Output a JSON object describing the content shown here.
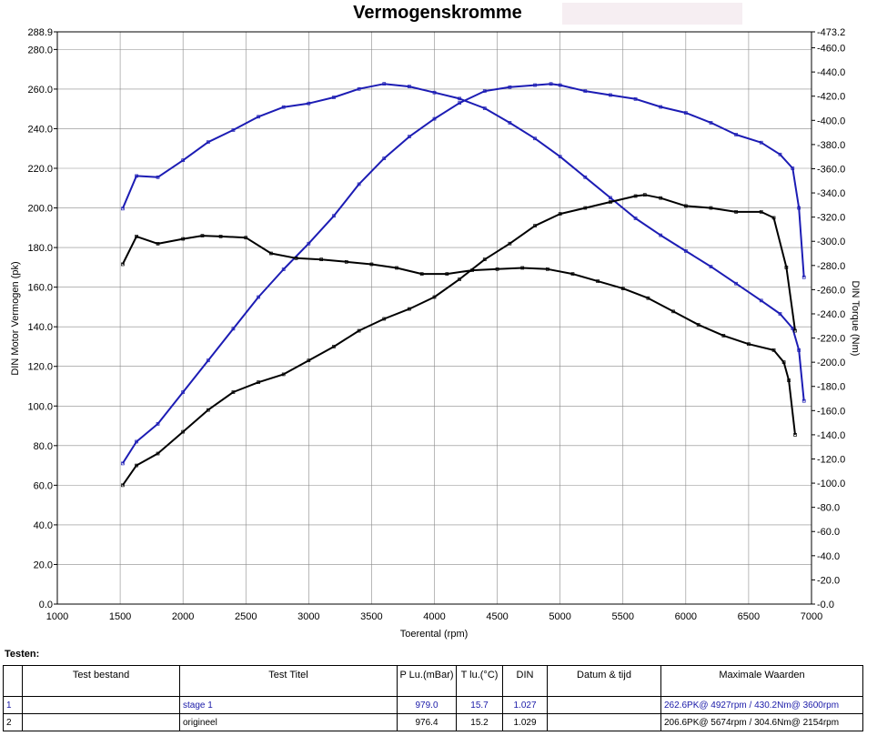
{
  "chart_data": {
    "type": "line",
    "title": "Vermogenskromme",
    "xlabel": "Toerental (rpm)",
    "ylabel_left": "DIN Motor Vermogen (pk)",
    "ylabel_right": "DIN Torque (Nm)",
    "xlim": [
      1000,
      7000
    ],
    "ylim_left": [
      0,
      288.9
    ],
    "ylim_right": [
      0,
      473.2
    ],
    "x_ticks": [
      1000,
      1500,
      2000,
      2500,
      3000,
      3500,
      4000,
      4500,
      5000,
      5500,
      6000,
      6500,
      7000
    ],
    "y_left_ticks": [
      "0.0",
      "20.0",
      "40.0",
      "60.0",
      "80.0",
      "100.0",
      "120.0",
      "140.0",
      "160.0",
      "180.0",
      "200.0",
      "220.0",
      "240.0",
      "260.0",
      "280.0",
      "288.9"
    ],
    "y_right_ticks": [
      "0.0",
      "20.0",
      "40.0",
      "60.0",
      "80.0",
      "100.0",
      "120.0",
      "140.0",
      "160.0",
      "180.0",
      "200.0",
      "220.0",
      "240.0",
      "260.0",
      "280.0",
      "300.0",
      "320.0",
      "340.0",
      "360.0",
      "380.0",
      "400.0",
      "420.0",
      "440.0",
      "460.0",
      "473.2"
    ],
    "grid": true,
    "series": [
      {
        "name": "stage 1",
        "quantity": "power_pk",
        "axis": "left",
        "color": "#1c1cb4",
        "points": [
          [
            1520,
            71
          ],
          [
            1630,
            82
          ],
          [
            1800,
            91
          ],
          [
            2000,
            107
          ],
          [
            2200,
            123
          ],
          [
            2400,
            139
          ],
          [
            2600,
            155
          ],
          [
            2800,
            169
          ],
          [
            3000,
            182
          ],
          [
            3200,
            196
          ],
          [
            3400,
            212
          ],
          [
            3600,
            225
          ],
          [
            3800,
            236
          ],
          [
            4000,
            245
          ],
          [
            4200,
            253
          ],
          [
            4400,
            259
          ],
          [
            4600,
            261
          ],
          [
            4800,
            262
          ],
          [
            4927,
            262.6
          ],
          [
            5000,
            262
          ],
          [
            5200,
            259
          ],
          [
            5400,
            257
          ],
          [
            5600,
            255
          ],
          [
            5800,
            251
          ],
          [
            6000,
            248
          ],
          [
            6200,
            243
          ],
          [
            6400,
            237
          ],
          [
            6600,
            233
          ],
          [
            6750,
            227
          ],
          [
            6850,
            220
          ],
          [
            6900,
            200
          ],
          [
            6940,
            165
          ]
        ]
      },
      {
        "name": "stage 1",
        "quantity": "torque_nm",
        "axis": "right",
        "color": "#1c1cb4",
        "points": [
          [
            1520,
            327
          ],
          [
            1630,
            354
          ],
          [
            1800,
            353
          ],
          [
            2000,
            367
          ],
          [
            2200,
            382
          ],
          [
            2400,
            392
          ],
          [
            2600,
            403
          ],
          [
            2800,
            411
          ],
          [
            3000,
            414
          ],
          [
            3200,
            419
          ],
          [
            3400,
            426
          ],
          [
            3600,
            430.2
          ],
          [
            3800,
            428
          ],
          [
            4000,
            423
          ],
          [
            4200,
            418
          ],
          [
            4400,
            410
          ],
          [
            4600,
            398
          ],
          [
            4800,
            385
          ],
          [
            5000,
            370
          ],
          [
            5200,
            353
          ],
          [
            5400,
            336
          ],
          [
            5600,
            319
          ],
          [
            5800,
            305
          ],
          [
            6000,
            292
          ],
          [
            6200,
            279
          ],
          [
            6400,
            265
          ],
          [
            6600,
            251
          ],
          [
            6750,
            240
          ],
          [
            6850,
            228
          ],
          [
            6900,
            210
          ],
          [
            6940,
            168
          ]
        ]
      },
      {
        "name": "origineel",
        "quantity": "power_pk",
        "axis": "left",
        "color": "#000000",
        "points": [
          [
            1520,
            60
          ],
          [
            1630,
            70
          ],
          [
            1800,
            76
          ],
          [
            2000,
            87
          ],
          [
            2200,
            98
          ],
          [
            2400,
            107
          ],
          [
            2600,
            112
          ],
          [
            2800,
            116
          ],
          [
            3000,
            123
          ],
          [
            3200,
            130
          ],
          [
            3400,
            138
          ],
          [
            3600,
            144
          ],
          [
            3800,
            149
          ],
          [
            4000,
            155
          ],
          [
            4200,
            164
          ],
          [
            4400,
            174
          ],
          [
            4600,
            182
          ],
          [
            4800,
            191
          ],
          [
            5000,
            197
          ],
          [
            5200,
            200
          ],
          [
            5400,
            203
          ],
          [
            5600,
            206
          ],
          [
            5674,
            206.6
          ],
          [
            5800,
            205
          ],
          [
            6000,
            201
          ],
          [
            6200,
            200
          ],
          [
            6400,
            198
          ],
          [
            6600,
            198
          ],
          [
            6700,
            195
          ],
          [
            6800,
            170
          ],
          [
            6870,
            138
          ]
        ]
      },
      {
        "name": "origineel",
        "quantity": "torque_nm",
        "axis": "right",
        "color": "#000000",
        "points": [
          [
            1520,
            281
          ],
          [
            1630,
            304
          ],
          [
            1800,
            298
          ],
          [
            2000,
            302
          ],
          [
            2154,
            304.6
          ],
          [
            2300,
            304
          ],
          [
            2500,
            303
          ],
          [
            2700,
            290
          ],
          [
            2900,
            286
          ],
          [
            3100,
            285
          ],
          [
            3300,
            283
          ],
          [
            3500,
            281
          ],
          [
            3700,
            278
          ],
          [
            3900,
            273
          ],
          [
            4100,
            273
          ],
          [
            4300,
            276
          ],
          [
            4500,
            277
          ],
          [
            4700,
            278
          ],
          [
            4900,
            277
          ],
          [
            5100,
            273
          ],
          [
            5300,
            267
          ],
          [
            5500,
            261
          ],
          [
            5700,
            253
          ],
          [
            5900,
            242
          ],
          [
            6100,
            231
          ],
          [
            6300,
            222
          ],
          [
            6500,
            215
          ],
          [
            6700,
            210
          ],
          [
            6780,
            200
          ],
          [
            6820,
            185
          ],
          [
            6870,
            140
          ]
        ]
      }
    ]
  },
  "tests": {
    "label": "Testen:",
    "columns": [
      "",
      "Test bestand",
      "Test Titel",
      "P Lu.(mBar)",
      "T lu.(°C)",
      "DIN",
      "Datum & tijd",
      "Maximale Waarden"
    ],
    "rows": [
      {
        "no": "1",
        "file": "",
        "title": "stage 1",
        "pressure": "979.0",
        "temp": "15.7",
        "din": "1.027",
        "datetime": "",
        "max": "262.6PK@ 4927rpm / 430.2Nm@ 3600rpm"
      },
      {
        "no": "2",
        "file": "",
        "title": "origineel",
        "pressure": "976.4",
        "temp": "15.2",
        "din": "1.029",
        "datetime": "",
        "max": "206.6PK@ 5674rpm / 304.6Nm@ 2154rpm"
      }
    ]
  }
}
